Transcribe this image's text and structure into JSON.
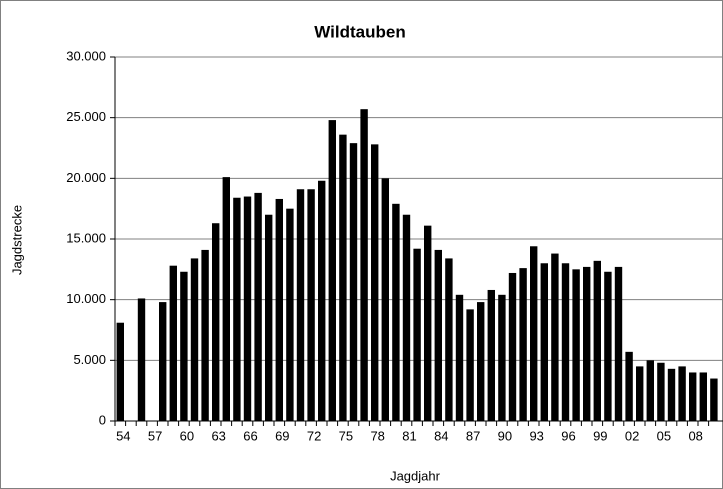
{
  "chart_data": {
    "type": "bar",
    "title": "Wildtauben",
    "x_label": "Jagdjahr",
    "y_label": "Jagdstrecke",
    "categories": [
      "54",
      null,
      null,
      "57",
      null,
      null,
      "60",
      null,
      null,
      "63",
      null,
      null,
      "66",
      null,
      null,
      "69",
      null,
      null,
      "72",
      null,
      null,
      "75",
      null,
      null,
      "78",
      null,
      null,
      "81",
      null,
      null,
      "84",
      null,
      null,
      "87",
      null,
      null,
      "90",
      null,
      null,
      "93",
      null,
      null,
      "96",
      null,
      null,
      "99",
      null,
      null,
      "02",
      null,
      null,
      "05",
      null,
      null,
      "08",
      null,
      null
    ],
    "values": [
      8100,
      null,
      10100,
      null,
      9800,
      12800,
      12300,
      13400,
      14100,
      16300,
      20100,
      18400,
      18500,
      18800,
      17000,
      18300,
      17500,
      19100,
      19100,
      19800,
      24800,
      23600,
      22900,
      25700,
      22800,
      20000,
      17900,
      17000,
      14200,
      16100,
      14100,
      13400,
      10400,
      9200,
      9800,
      10800,
      10400,
      12200,
      12600,
      14400,
      13000,
      13800,
      13000,
      12500,
      12700,
      13200,
      12300,
      12700,
      5700,
      4500,
      5000,
      4800,
      4300,
      4500,
      4000,
      4000,
      3500
    ],
    "color": "#000000",
    "ylim": [
      0,
      30000
    ],
    "yticks": [
      0,
      {
        "value": 5000,
        "label": "5.000"
      },
      {
        "value": 10000,
        "label": "10.000"
      },
      {
        "value": 15000,
        "label": "15.000"
      },
      {
        "value": 20000,
        "label": "20.000"
      },
      {
        "value": 25000,
        "label": "25.000"
      },
      {
        "value": 30000,
        "label": "30.000"
      }
    ],
    "grid": true
  }
}
